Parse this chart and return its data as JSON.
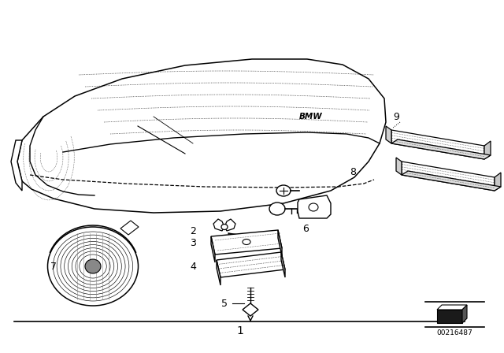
{
  "bg_color": "#ffffff",
  "line_color": "#000000",
  "diagram_id": "00216487",
  "fig_width": 6.4,
  "fig_height": 4.48,
  "dpi": 100
}
